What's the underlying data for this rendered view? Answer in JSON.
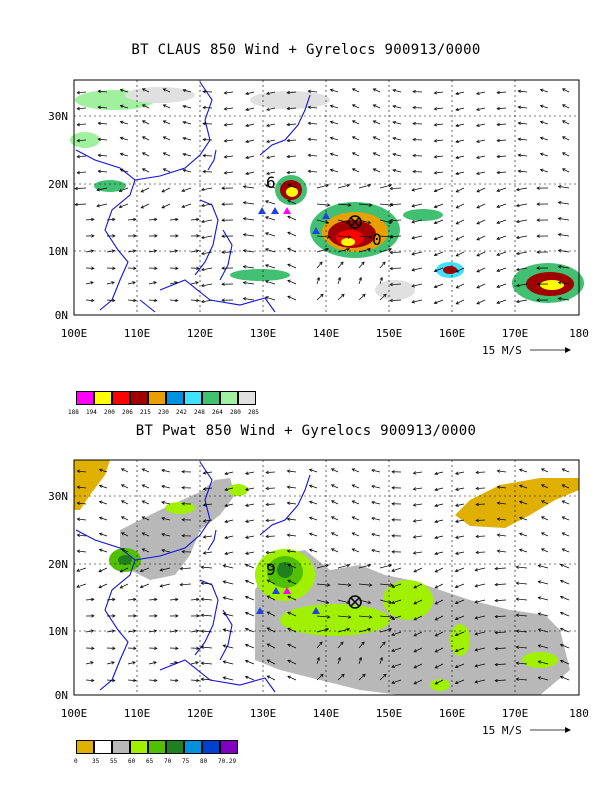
{
  "panels": [
    {
      "title": "BT CLAUS 850 Wind + Gyrelocs 900913/0000",
      "y_ticks": [
        "30N",
        "20N",
        "10N",
        "0N"
      ],
      "x_ticks": [
        "100E",
        "110E",
        "120E",
        "130E",
        "140E",
        "150E",
        "160E",
        "170E",
        "180"
      ],
      "wind_ref_label": "15 M/S",
      "legend": {
        "colors": [
          "#ff00ff",
          "#ffff00",
          "#ff0000",
          "#a00000",
          "#e8a000",
          "#0090e0",
          "#40e0ff",
          "#40c070",
          "#a0f0a0",
          "#e0e0e0"
        ],
        "labels": [
          "188",
          "194",
          "200",
          "206",
          "215",
          "230",
          "242",
          "248",
          "264",
          "280",
          "285"
        ]
      }
    },
    {
      "title": "BT Pwat 850 Wind + Gyrelocs 900913/0000",
      "y_ticks": [
        "30N",
        "20N",
        "10N",
        "0N"
      ],
      "x_ticks": [
        "100E",
        "110E",
        "120E",
        "130E",
        "140E",
        "150E",
        "160E",
        "170E",
        "180"
      ],
      "wind_ref_label": "15 M/S",
      "legend": {
        "colors": [
          "#e0b000",
          "#ffffff",
          "#b8b8b8",
          "#a0f000",
          "#50c000",
          "#208020",
          "#0090e0",
          "#0040d0",
          "#8000c0"
        ],
        "labels": [
          "0",
          "35",
          "55",
          "60",
          "65",
          "70",
          "75",
          "80",
          "70.29"
        ]
      }
    }
  ]
}
